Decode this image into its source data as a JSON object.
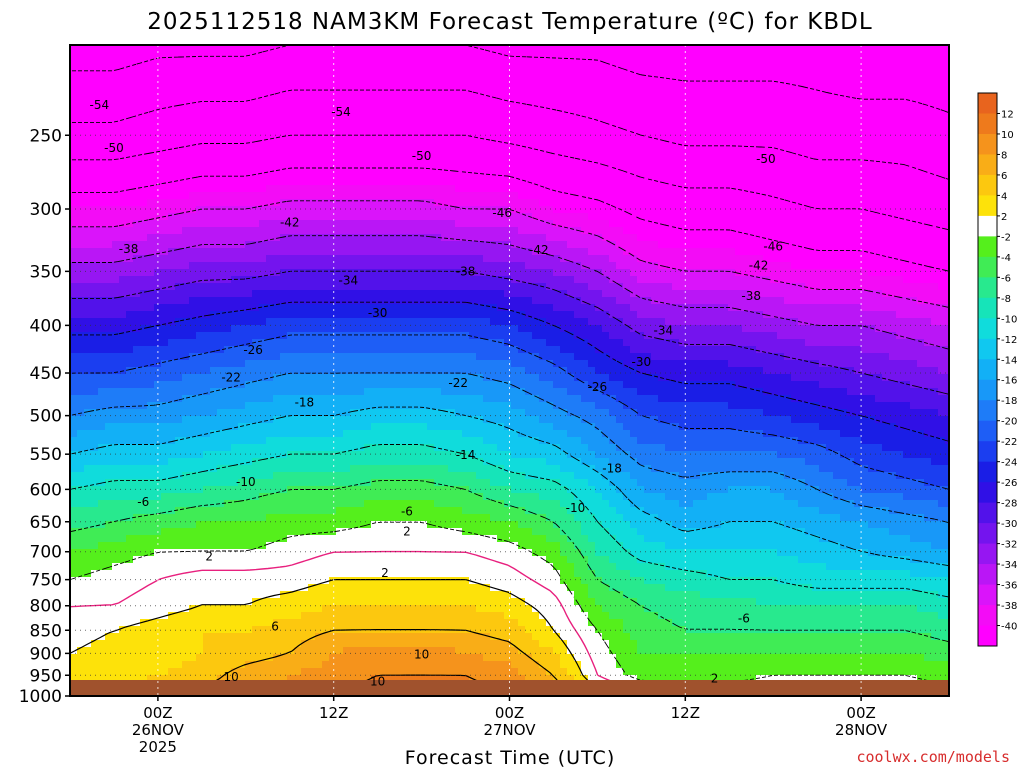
{
  "chart_data": {
    "type": "heatmap",
    "title": "2025112518 NAM3KM Forecast Temperature (ºC) for KBDL",
    "xlabel": "Forecast Time (UTC)",
    "ylabel": "",
    "y_scale": "log",
    "y_inverted": true,
    "ylim": [
      1000,
      200
    ],
    "y_ticks": [
      1000,
      950,
      900,
      850,
      800,
      750,
      700,
      650,
      600,
      550,
      500,
      450,
      400,
      350,
      300,
      250
    ],
    "y_tick_labels": [
      "1000",
      "950",
      "900",
      "850",
      "800",
      "750",
      "700",
      "650",
      "600",
      "550",
      "500",
      "450",
      "400",
      "350",
      "300",
      "250"
    ],
    "x_ticks": [
      {
        "hour": 6,
        "lines": [
          "00Z",
          "26NOV",
          "2025"
        ]
      },
      {
        "hour": 18,
        "lines": [
          "12Z"
        ]
      },
      {
        "hour": 30,
        "lines": [
          "00Z",
          "27NOV"
        ]
      },
      {
        "hour": 42,
        "lines": [
          "12Z"
        ]
      },
      {
        "hour": 54,
        "lines": [
          "00Z",
          "28NOV"
        ]
      }
    ],
    "xlim": [
      0,
      60
    ],
    "colorbar": {
      "labels": [
        "12",
        "10",
        "8",
        "6",
        "4",
        "2",
        "-2",
        "-4",
        "-6",
        "-8",
        "-10",
        "-12",
        "-14",
        "-16",
        "-18",
        "-20",
        "-22",
        "-24",
        "-26",
        "-28",
        "-30",
        "-32",
        "-34",
        "-36",
        "-38",
        "-40"
      ],
      "colors": [
        "#e8641e",
        "#ee7a1c",
        "#f5931c",
        "#f9ad17",
        "#fcc80f",
        "#fde20a",
        "#ffffff",
        "#55ef1c",
        "#40ec55",
        "#28e98e",
        "#16e4b9",
        "#10dcdc",
        "#10c8f0",
        "#12b0f6",
        "#1898f8",
        "#1e7cf8",
        "#1e5ef6",
        "#1b3ef0",
        "#1a1ee6",
        "#3010e6",
        "#5212ea",
        "#7414ee",
        "#9616f2",
        "#ba16f6",
        "#da14fa",
        "#f30cf6",
        "#ff00ff"
      ]
    },
    "temperature_field": {
      "x_hours": [
        0,
        3,
        6,
        9,
        12,
        15,
        18,
        21,
        24,
        27,
        30,
        33,
        36,
        39,
        42,
        45,
        48,
        51,
        54,
        57,
        60
      ],
      "p_levels": [
        1000,
        950,
        900,
        850,
        800,
        750,
        700,
        650,
        600,
        550,
        500,
        450,
        400,
        350,
        300,
        250,
        200
      ],
      "values_degC": [
        [
          5,
          5,
          6,
          7,
          7,
          8,
          10,
          11,
          12,
          11,
          10,
          8,
          3,
          1,
          0,
          0,
          0,
          1,
          1,
          0,
          -1
        ],
        [
          3,
          3,
          4,
          5,
          7,
          8,
          9,
          10,
          10,
          10,
          9,
          6,
          0,
          -3,
          -3,
          -3,
          -2,
          -2,
          -2,
          -2,
          -3
        ],
        [
          2,
          3,
          3,
          4,
          5,
          6,
          8,
          9,
          9,
          8,
          7,
          4,
          -1,
          -4,
          -4,
          -4,
          -4,
          -4,
          -4,
          -4,
          -5
        ],
        [
          1,
          2,
          3,
          4,
          4,
          5,
          6,
          6,
          6,
          6,
          5,
          2,
          -2,
          -5,
          -6,
          -6,
          -6,
          -6,
          -6,
          -6,
          -7
        ],
        [
          0,
          0,
          1,
          2,
          2,
          3,
          4,
          4,
          4,
          4,
          3,
          1,
          -4,
          -6,
          -7,
          -7,
          -8,
          -8,
          -8,
          -8,
          -9
        ],
        [
          -2,
          -1,
          0,
          1,
          1,
          1,
          2,
          2,
          2,
          2,
          1,
          -1,
          -6,
          -8,
          -9,
          -10,
          -10,
          -11,
          -11,
          -11,
          -12
        ],
        [
          -4,
          -3,
          -2,
          -2,
          -2,
          -1,
          0,
          0,
          0,
          0,
          -1,
          -3,
          -8,
          -11,
          -12,
          -12,
          -12,
          -13,
          -14,
          -15,
          -16
        ],
        [
          -7,
          -6,
          -5,
          -4,
          -4,
          -3,
          -3,
          -2,
          -2,
          -3,
          -4,
          -6,
          -10,
          -13,
          -15,
          -14,
          -14,
          -15,
          -16,
          -17,
          -18
        ],
        [
          -10,
          -9,
          -9,
          -8,
          -7,
          -6,
          -6,
          -5,
          -5,
          -6,
          -8,
          -9,
          -12,
          -16,
          -17,
          -16,
          -16,
          -18,
          -20,
          -21,
          -22
        ],
        [
          -14,
          -13,
          -13,
          -12,
          -11,
          -10,
          -10,
          -9,
          -9,
          -10,
          -12,
          -13,
          -16,
          -19,
          -20,
          -20,
          -20,
          -21,
          -23,
          -24,
          -25
        ],
        [
          -18,
          -17,
          -17,
          -16,
          -15,
          -14,
          -14,
          -13,
          -13,
          -14,
          -15,
          -17,
          -19,
          -22,
          -23,
          -23,
          -24,
          -25,
          -26,
          -27,
          -28
        ],
        [
          -22,
          -22,
          -21,
          -20,
          -19,
          -18,
          -18,
          -18,
          -18,
          -18,
          -19,
          -21,
          -24,
          -26,
          -27,
          -27,
          -28,
          -29,
          -30,
          -31,
          -32
        ],
        [
          -27,
          -27,
          -26,
          -25,
          -24,
          -23,
          -23,
          -23,
          -23,
          -23,
          -24,
          -26,
          -28,
          -31,
          -32,
          -32,
          -33,
          -34,
          -34,
          -35,
          -36
        ],
        [
          -33,
          -33,
          -32,
          -31,
          -31,
          -30,
          -30,
          -30,
          -30,
          -30,
          -31,
          -32,
          -34,
          -37,
          -38,
          -38,
          -39,
          -40,
          -40,
          -41,
          -42
        ],
        [
          -40,
          -40,
          -39,
          -38,
          -38,
          -37,
          -37,
          -37,
          -37,
          -38,
          -38,
          -40,
          -41,
          -43,
          -44,
          -44,
          -45,
          -46,
          -46,
          -47,
          -48
        ],
        [
          -49,
          -49,
          -48,
          -47,
          -47,
          -46,
          -46,
          -46,
          -46,
          -46,
          -47,
          -48,
          -49,
          -50,
          -51,
          -51,
          -51,
          -52,
          -52,
          -52,
          -53
        ],
        [
          -56,
          -56,
          -55,
          -55,
          -55,
          -54,
          -54,
          -54,
          -54,
          -54,
          -55,
          -55,
          -55,
          -56,
          -56,
          -56,
          -56,
          -56,
          -57,
          -57,
          -57
        ]
      ]
    },
    "contour_levels": [
      -54,
      -50,
      -46,
      -42,
      -38,
      -34,
      -30,
      -26,
      -22,
      -18,
      -14,
      -10,
      -6,
      -2,
      2,
      6,
      10
    ],
    "contour_labels": [
      {
        "text": "-54",
        "hour": 2,
        "p": 232
      },
      {
        "text": "-54",
        "hour": 18.5,
        "p": 236
      },
      {
        "text": "-50",
        "hour": 3,
        "p": 258
      },
      {
        "text": "-50",
        "hour": 24,
        "p": 263
      },
      {
        "text": "-50",
        "hour": 47.5,
        "p": 265
      },
      {
        "text": "-46",
        "hour": 29.5,
        "p": 303
      },
      {
        "text": "-46",
        "hour": 48,
        "p": 329
      },
      {
        "text": "-42",
        "hour": 15,
        "p": 310
      },
      {
        "text": "-42",
        "hour": 32,
        "p": 332
      },
      {
        "text": "-42",
        "hour": 47,
        "p": 345
      },
      {
        "text": "-38",
        "hour": 4,
        "p": 331
      },
      {
        "text": "-38",
        "hour": 27,
        "p": 350
      },
      {
        "text": "-38",
        "hour": 46.5,
        "p": 372
      },
      {
        "text": "-34",
        "hour": 19,
        "p": 358
      },
      {
        "text": "-34",
        "hour": 40.5,
        "p": 405
      },
      {
        "text": "-30",
        "hour": 21,
        "p": 388
      },
      {
        "text": "-30",
        "hour": 39,
        "p": 438
      },
      {
        "text": "-26",
        "hour": 12.5,
        "p": 425
      },
      {
        "text": "-26",
        "hour": 36,
        "p": 466
      },
      {
        "text": "-22",
        "hour": 11,
        "p": 455
      },
      {
        "text": "-22",
        "hour": 26.5,
        "p": 461
      },
      {
        "text": "-18",
        "hour": 16,
        "p": 484
      },
      {
        "text": "-18",
        "hour": 37,
        "p": 570
      },
      {
        "text": "-14",
        "hour": 27,
        "p": 551
      },
      {
        "text": "-10",
        "hour": 12,
        "p": 589
      },
      {
        "text": "-10",
        "hour": 34.5,
        "p": 628
      },
      {
        "text": "-6",
        "hour": 5,
        "p": 619
      },
      {
        "text": "-6",
        "hour": 23,
        "p": 634
      },
      {
        "text": "-6",
        "hour": 46,
        "p": 826
      },
      {
        "text": "2",
        "hour": 9.5,
        "p": 708
      },
      {
        "text": "2",
        "hour": 23,
        "p": 666
      },
      {
        "text": "2",
        "hour": 21.5,
        "p": 738
      },
      {
        "text": "2",
        "hour": 44,
        "p": 958
      },
      {
        "text": "6",
        "hour": 14,
        "p": 842
      },
      {
        "text": "10",
        "hour": 24,
        "p": 903
      },
      {
        "text": "10",
        "hour": 11,
        "p": 954
      },
      {
        "text": "10",
        "hour": 21,
        "p": 965
      }
    ],
    "ground_color": "#a0522d",
    "freezing_line_color": "#e8207e"
  },
  "watermark": "coolwx.com/models"
}
